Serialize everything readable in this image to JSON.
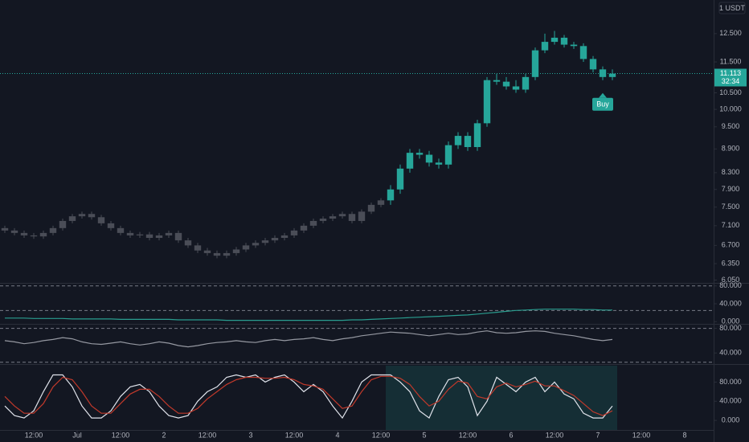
{
  "chart_data": [
    {
      "type": "candlestick",
      "log": true,
      "unit": "1 USDT",
      "xlim": [
        -0.5,
        73.5
      ],
      "ylim": [
        6.0,
        13.8
      ],
      "yticks": [
        {
          "value": 12.5,
          "label": "12.500"
        },
        {
          "value": 11.5,
          "label": "11.500"
        },
        {
          "value": 10.5,
          "label": "10.500"
        },
        {
          "value": 10,
          "label": "10.000"
        },
        {
          "value": 9.5,
          "label": "9.500"
        },
        {
          "value": 8.9,
          "label": "8.900"
        },
        {
          "value": 8.3,
          "label": "8.300"
        },
        {
          "value": 7.9,
          "label": "7.900"
        },
        {
          "value": 7.5,
          "label": "7.500"
        },
        {
          "value": 7.1,
          "label": "7.100"
        },
        {
          "value": 6.7,
          "label": "6.700"
        },
        {
          "value": 6.35,
          "label": "6.350"
        },
        {
          "value": 6.05,
          "label": "6.050"
        }
      ],
      "xticks": [
        {
          "value": 3,
          "label": "12:00"
        },
        {
          "value": 7.5,
          "label": "Jul"
        },
        {
          "value": 12,
          "label": "12:00"
        },
        {
          "value": 16.5,
          "label": "2"
        },
        {
          "value": 21,
          "label": "12:00"
        },
        {
          "value": 25.5,
          "label": "3"
        },
        {
          "value": 30,
          "label": "12:00"
        },
        {
          "value": 34.5,
          "label": "4"
        },
        {
          "value": 39,
          "label": "12:00"
        },
        {
          "value": 43.5,
          "label": "5"
        },
        {
          "value": 48,
          "label": "12:00"
        },
        {
          "value": 52.5,
          "label": "6"
        },
        {
          "value": 57,
          "label": "12:00"
        },
        {
          "value": 61.5,
          "label": "7"
        },
        {
          "value": 66,
          "label": "12:00"
        },
        {
          "value": 70.5,
          "label": "8"
        }
      ],
      "series": [
        {
          "color": "#4a4d57",
          "x": [
            0,
            1,
            2,
            3,
            4,
            5,
            6,
            7,
            8,
            9,
            10,
            11,
            12,
            13,
            14,
            15,
            16,
            17,
            18,
            19,
            20,
            21,
            22,
            23,
            24,
            25,
            26,
            27,
            28,
            29,
            30,
            31,
            32,
            33,
            34,
            35,
            36,
            37,
            38,
            39
          ],
          "open": [
            7.05,
            7.0,
            6.95,
            6.9,
            6.88,
            6.95,
            7.05,
            7.2,
            7.3,
            7.35,
            7.28,
            7.15,
            7.05,
            6.95,
            6.9,
            6.92,
            6.85,
            6.9,
            6.95,
            6.8,
            6.7,
            6.6,
            6.55,
            6.5,
            6.55,
            6.62,
            6.7,
            6.75,
            6.8,
            6.85,
            6.9,
            7.0,
            7.1,
            7.2,
            7.25,
            7.3,
            7.35,
            7.2,
            7.4,
            7.55
          ],
          "high": [
            7.1,
            7.05,
            7.0,
            6.95,
            7.0,
            7.1,
            7.25,
            7.35,
            7.4,
            7.4,
            7.33,
            7.2,
            7.1,
            7.0,
            6.97,
            6.97,
            6.95,
            7.0,
            7.0,
            6.85,
            6.75,
            6.65,
            6.6,
            6.6,
            6.67,
            6.75,
            6.8,
            6.85,
            6.9,
            6.95,
            7.05,
            7.15,
            7.25,
            7.3,
            7.35,
            7.4,
            7.4,
            7.45,
            7.6,
            7.7
          ],
          "low": [
            6.95,
            6.9,
            6.85,
            6.83,
            6.83,
            6.9,
            7.0,
            7.15,
            7.25,
            7.23,
            7.1,
            7.0,
            6.9,
            6.85,
            6.85,
            6.8,
            6.8,
            6.85,
            6.75,
            6.65,
            6.55,
            6.5,
            6.45,
            6.45,
            6.5,
            6.57,
            6.65,
            6.7,
            6.75,
            6.8,
            6.85,
            6.95,
            7.05,
            7.15,
            7.2,
            7.25,
            7.15,
            7.15,
            7.35,
            7.5
          ],
          "close": [
            7.0,
            6.95,
            6.9,
            6.88,
            6.95,
            7.05,
            7.2,
            7.3,
            7.35,
            7.28,
            7.15,
            7.05,
            6.95,
            6.9,
            6.92,
            6.85,
            6.9,
            6.95,
            6.8,
            6.7,
            6.6,
            6.55,
            6.5,
            6.55,
            6.62,
            6.7,
            6.75,
            6.8,
            6.85,
            6.9,
            7.0,
            7.1,
            7.2,
            7.25,
            7.3,
            7.35,
            7.2,
            7.4,
            7.55,
            7.65
          ]
        },
        {
          "color": "#26a69a",
          "x": [
            40,
            41,
            42,
            43,
            44,
            45,
            46,
            47,
            48,
            49,
            50,
            51,
            52,
            53,
            54,
            55,
            56,
            57,
            58,
            59,
            60,
            61,
            62,
            63
          ],
          "open": [
            7.65,
            7.9,
            8.4,
            8.8,
            8.75,
            8.55,
            8.5,
            9.0,
            9.25,
            8.95,
            9.6,
            10.9,
            10.85,
            10.7,
            10.6,
            11.0,
            11.9,
            12.2,
            12.35,
            12.1,
            12.05,
            11.6,
            11.25,
            11.0
          ],
          "high": [
            8.0,
            8.5,
            8.9,
            8.9,
            8.85,
            8.65,
            9.1,
            9.35,
            9.35,
            9.7,
            11.0,
            11.1,
            11.0,
            10.9,
            11.1,
            12.0,
            12.5,
            12.6,
            12.45,
            12.2,
            12.15,
            11.7,
            11.35,
            11.25
          ],
          "low": [
            7.55,
            7.8,
            8.3,
            8.65,
            8.45,
            8.4,
            8.4,
            8.9,
            8.85,
            8.85,
            9.5,
            10.75,
            10.6,
            10.5,
            10.5,
            10.9,
            11.8,
            12.1,
            12.0,
            11.95,
            11.5,
            11.15,
            10.9,
            10.9
          ],
          "close": [
            7.9,
            8.4,
            8.8,
            8.75,
            8.55,
            8.5,
            9.0,
            9.25,
            8.95,
            9.6,
            10.9,
            10.85,
            10.7,
            10.6,
            11.0,
            11.9,
            12.2,
            12.35,
            12.1,
            12.05,
            11.6,
            11.25,
            11.0,
            11.11
          ]
        }
      ],
      "last_price": 11.113,
      "countdown": "32:34",
      "last_color": "#26a69a",
      "annotation": {
        "text": "Buy",
        "x": 62,
        "color": "#26a69a"
      }
    },
    {
      "type": "line",
      "xlim": [
        -0.5,
        73.5
      ],
      "ylim": [
        -5,
        85
      ],
      "yticks": [
        {
          "value": 80,
          "label": "80.000"
        },
        {
          "value": 40,
          "label": "40.000"
        },
        {
          "value": 0,
          "label": "0.000"
        }
      ],
      "levels": [
        80,
        25
      ],
      "series": [
        {
          "color": "#2a9d8f",
          "x": [
            0,
            1,
            2,
            3,
            4,
            5,
            6,
            7,
            8,
            9,
            10,
            11,
            12,
            13,
            14,
            15,
            16,
            17,
            18,
            19,
            20,
            21,
            22,
            23,
            24,
            25,
            26,
            27,
            28,
            29,
            30,
            31,
            32,
            33,
            34,
            35,
            36,
            37,
            38,
            39,
            40,
            41,
            42,
            43,
            44,
            45,
            46,
            47,
            48,
            49,
            50,
            51,
            52,
            53,
            54,
            55,
            56,
            57,
            58,
            59,
            60,
            61,
            62,
            63
          ],
          "values": [
            8,
            8,
            8,
            7,
            7,
            7,
            7,
            6,
            6,
            6,
            6,
            6,
            5,
            5,
            5,
            5,
            5,
            5,
            4,
            4,
            4,
            4,
            4,
            3,
            3,
            3,
            3,
            3,
            3,
            3,
            3,
            3,
            3,
            3,
            3,
            3,
            4,
            4,
            5,
            6,
            7,
            8,
            9,
            10,
            11,
            12,
            13,
            14,
            15,
            17,
            19,
            21,
            23,
            25,
            26,
            27,
            28,
            28,
            28,
            28,
            27,
            27,
            26,
            26
          ]
        }
      ]
    },
    {
      "type": "line",
      "xlim": [
        -0.5,
        73.5
      ],
      "ylim": [
        22,
        86
      ],
      "yticks": [
        {
          "value": 80,
          "label": "80.000"
        },
        {
          "value": 40,
          "label": "40.000"
        }
      ],
      "levels": [
        80,
        25
      ],
      "series": [
        {
          "color": "#9598a1",
          "x": [
            0,
            1,
            2,
            3,
            4,
            5,
            6,
            7,
            8,
            9,
            10,
            11,
            12,
            13,
            14,
            15,
            16,
            17,
            18,
            19,
            20,
            21,
            22,
            23,
            24,
            25,
            26,
            27,
            28,
            29,
            30,
            31,
            32,
            33,
            34,
            35,
            36,
            37,
            38,
            39,
            40,
            41,
            42,
            43,
            44,
            45,
            46,
            47,
            48,
            49,
            50,
            51,
            52,
            53,
            54,
            55,
            56,
            57,
            58,
            59,
            60,
            61,
            62,
            63
          ],
          "values": [
            60,
            58,
            55,
            57,
            60,
            62,
            65,
            63,
            58,
            55,
            54,
            56,
            58,
            55,
            53,
            55,
            58,
            56,
            52,
            50,
            52,
            55,
            57,
            58,
            60,
            58,
            57,
            60,
            62,
            60,
            62,
            63,
            65,
            62,
            60,
            63,
            65,
            68,
            70,
            72,
            74,
            73,
            72,
            70,
            68,
            70,
            72,
            70,
            71,
            74,
            76,
            73,
            72,
            73,
            75,
            76,
            75,
            72,
            70,
            68,
            65,
            62,
            60,
            62
          ]
        }
      ]
    },
    {
      "type": "line",
      "xlim": [
        -0.5,
        73.5
      ],
      "ylim": [
        -20,
        116
      ],
      "yticks": [
        {
          "value": 80,
          "label": "80.000"
        },
        {
          "value": 40,
          "label": "40.000"
        },
        {
          "value": 0,
          "label": "0.000"
        }
      ],
      "shade_color": "rgba(38,166,154,0.16)",
      "series": [
        {
          "color": "#e0e3eb",
          "x": [
            0,
            1,
            2,
            3,
            4,
            5,
            6,
            7,
            8,
            9,
            10,
            11,
            12,
            13,
            14,
            15,
            16,
            17,
            18,
            19,
            20,
            21,
            22,
            23,
            24,
            25,
            26,
            27,
            28,
            29,
            30,
            31,
            32,
            33,
            34,
            35,
            36,
            37,
            38,
            39,
            40,
            41,
            42,
            43,
            44,
            45,
            46,
            47,
            48,
            49,
            50,
            51,
            52,
            53,
            54,
            55,
            56,
            57,
            58,
            59,
            60,
            61,
            62,
            63
          ],
          "values": [
            30,
            10,
            5,
            20,
            60,
            95,
            95,
            70,
            30,
            5,
            5,
            20,
            50,
            70,
            75,
            60,
            30,
            10,
            5,
            10,
            40,
            60,
            70,
            90,
            95,
            90,
            95,
            80,
            90,
            95,
            80,
            60,
            75,
            60,
            30,
            5,
            40,
            80,
            95,
            95,
            95,
            80,
            60,
            20,
            5,
            50,
            85,
            90,
            70,
            10,
            40,
            90,
            75,
            60,
            80,
            90,
            60,
            80,
            55,
            45,
            15,
            5,
            5,
            30
          ]
        },
        {
          "color": "#c0392b",
          "x": [
            0,
            1,
            2,
            3,
            4,
            5,
            6,
            7,
            8,
            9,
            10,
            11,
            12,
            13,
            14,
            15,
            16,
            17,
            18,
            19,
            20,
            21,
            22,
            23,
            24,
            25,
            26,
            27,
            28,
            29,
            30,
            31,
            32,
            33,
            34,
            35,
            36,
            37,
            38,
            39,
            40,
            41,
            42,
            43,
            44,
            45,
            46,
            47,
            48,
            49,
            50,
            51,
            52,
            53,
            54,
            55,
            56,
            57,
            58,
            59,
            60,
            61,
            62,
            63
          ],
          "values": [
            50,
            30,
            15,
            15,
            35,
            70,
            90,
            85,
            60,
            30,
            15,
            15,
            35,
            55,
            65,
            65,
            50,
            30,
            15,
            15,
            25,
            45,
            60,
            75,
            85,
            90,
            90,
            88,
            88,
            90,
            85,
            75,
            72,
            65,
            45,
            25,
            30,
            60,
            85,
            92,
            92,
            88,
            75,
            50,
            30,
            40,
            65,
            82,
            78,
            50,
            45,
            70,
            78,
            70,
            75,
            82,
            72,
            72,
            62,
            52,
            35,
            18,
            10,
            20
          ]
        }
      ]
    }
  ]
}
